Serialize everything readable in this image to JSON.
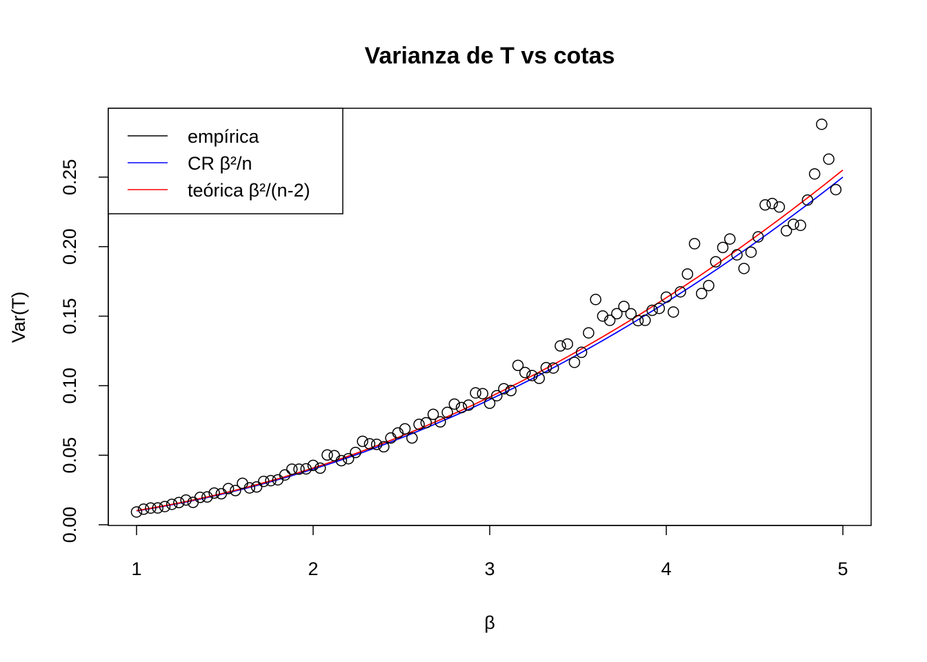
{
  "chart_data": {
    "type": "scatter",
    "title": "Varianza de T vs cotas",
    "xlabel": "β",
    "ylabel": "Var(T)",
    "xlim": [
      0.84,
      5.16
    ],
    "ylim": [
      -0.0005,
      0.2995
    ],
    "x_ticks": [
      "1",
      "2",
      "3",
      "4",
      "5"
    ],
    "y_ticks": [
      "0.00",
      "0.05",
      "0.10",
      "0.15",
      "0.20",
      "0.25"
    ],
    "grid": false,
    "legend_position": "top-left",
    "legend": [
      {
        "label": "empírica",
        "color": "#000000"
      },
      {
        "label": "CR β²/n",
        "color": "#0000ff"
      },
      {
        "label": "teórica β²/(n-2)",
        "color": "#ff0000"
      }
    ],
    "series": [
      {
        "name": "empírica",
        "color": "#000000",
        "marker": "open-circle",
        "points": [
          [
            1.0,
            0.0092
          ],
          [
            1.04,
            0.0112
          ],
          [
            1.08,
            0.012
          ],
          [
            1.12,
            0.0121
          ],
          [
            1.16,
            0.0131
          ],
          [
            1.2,
            0.0147
          ],
          [
            1.24,
            0.016
          ],
          [
            1.28,
            0.0178
          ],
          [
            1.32,
            0.0161
          ],
          [
            1.36,
            0.0197
          ],
          [
            1.4,
            0.02
          ],
          [
            1.44,
            0.0228
          ],
          [
            1.48,
            0.0223
          ],
          [
            1.52,
            0.026
          ],
          [
            1.56,
            0.0246
          ],
          [
            1.6,
            0.0298
          ],
          [
            1.64,
            0.0265
          ],
          [
            1.68,
            0.0272
          ],
          [
            1.72,
            0.0312
          ],
          [
            1.76,
            0.0317
          ],
          [
            1.8,
            0.0323
          ],
          [
            1.84,
            0.0358
          ],
          [
            1.88,
            0.04
          ],
          [
            1.92,
            0.04
          ],
          [
            1.96,
            0.0402
          ],
          [
            2.0,
            0.0427
          ],
          [
            2.04,
            0.0407
          ],
          [
            2.08,
            0.0502
          ],
          [
            2.12,
            0.0497
          ],
          [
            2.16,
            0.0461
          ],
          [
            2.2,
            0.0475
          ],
          [
            2.24,
            0.052
          ],
          [
            2.28,
            0.06
          ],
          [
            2.32,
            0.0582
          ],
          [
            2.36,
            0.0578
          ],
          [
            2.4,
            0.0561
          ],
          [
            2.44,
            0.0624
          ],
          [
            2.48,
            0.066
          ],
          [
            2.52,
            0.069
          ],
          [
            2.56,
            0.0624
          ],
          [
            2.6,
            0.0722
          ],
          [
            2.64,
            0.0734
          ],
          [
            2.68,
            0.0794
          ],
          [
            2.72,
            0.074
          ],
          [
            2.76,
            0.0808
          ],
          [
            2.8,
            0.0868
          ],
          [
            2.84,
            0.0843
          ],
          [
            2.88,
            0.086
          ],
          [
            2.92,
            0.0948
          ],
          [
            2.96,
            0.0943
          ],
          [
            3.0,
            0.0874
          ],
          [
            3.04,
            0.0928
          ],
          [
            3.08,
            0.0978
          ],
          [
            3.12,
            0.0965
          ],
          [
            3.16,
            0.1146
          ],
          [
            3.2,
            0.1095
          ],
          [
            3.24,
            0.1073
          ],
          [
            3.28,
            0.1053
          ],
          [
            3.32,
            0.113
          ],
          [
            3.36,
            0.1127
          ],
          [
            3.4,
            0.1286
          ],
          [
            3.44,
            0.13
          ],
          [
            3.48,
            0.1168
          ],
          [
            3.52,
            0.124
          ],
          [
            3.56,
            0.138
          ],
          [
            3.6,
            0.162
          ],
          [
            3.64,
            0.1501
          ],
          [
            3.68,
            0.147
          ],
          [
            3.72,
            0.1518
          ],
          [
            3.76,
            0.157
          ],
          [
            3.8,
            0.1517
          ],
          [
            3.84,
            0.1468
          ],
          [
            3.88,
            0.147
          ],
          [
            3.92,
            0.1542
          ],
          [
            3.96,
            0.1556
          ],
          [
            4.0,
            0.1637
          ],
          [
            4.04,
            0.153
          ],
          [
            4.08,
            0.1675
          ],
          [
            4.12,
            0.1803
          ],
          [
            4.16,
            0.2021
          ],
          [
            4.2,
            0.1663
          ],
          [
            4.24,
            0.172
          ],
          [
            4.28,
            0.1891
          ],
          [
            4.32,
            0.1994
          ],
          [
            4.36,
            0.2055
          ],
          [
            4.4,
            0.1941
          ],
          [
            4.44,
            0.1843
          ],
          [
            4.48,
            0.196
          ],
          [
            4.52,
            0.207
          ],
          [
            4.56,
            0.23
          ],
          [
            4.6,
            0.231
          ],
          [
            4.64,
            0.2285
          ],
          [
            4.68,
            0.2114
          ],
          [
            4.72,
            0.2161
          ],
          [
            4.76,
            0.2153
          ],
          [
            4.8,
            0.2335
          ],
          [
            4.84,
            0.2523
          ],
          [
            4.88,
            0.288
          ],
          [
            4.92,
            0.2629
          ],
          [
            4.96,
            0.241
          ]
        ]
      },
      {
        "name": "CR β²/n",
        "color": "#0000ff",
        "line": true,
        "formula": "β²/100",
        "x_range": [
          1,
          5
        ]
      },
      {
        "name": "teórica β²/(n-2)",
        "color": "#ff0000",
        "line": true,
        "formula": "β²/98",
        "x_range": [
          1,
          5
        ]
      }
    ]
  }
}
